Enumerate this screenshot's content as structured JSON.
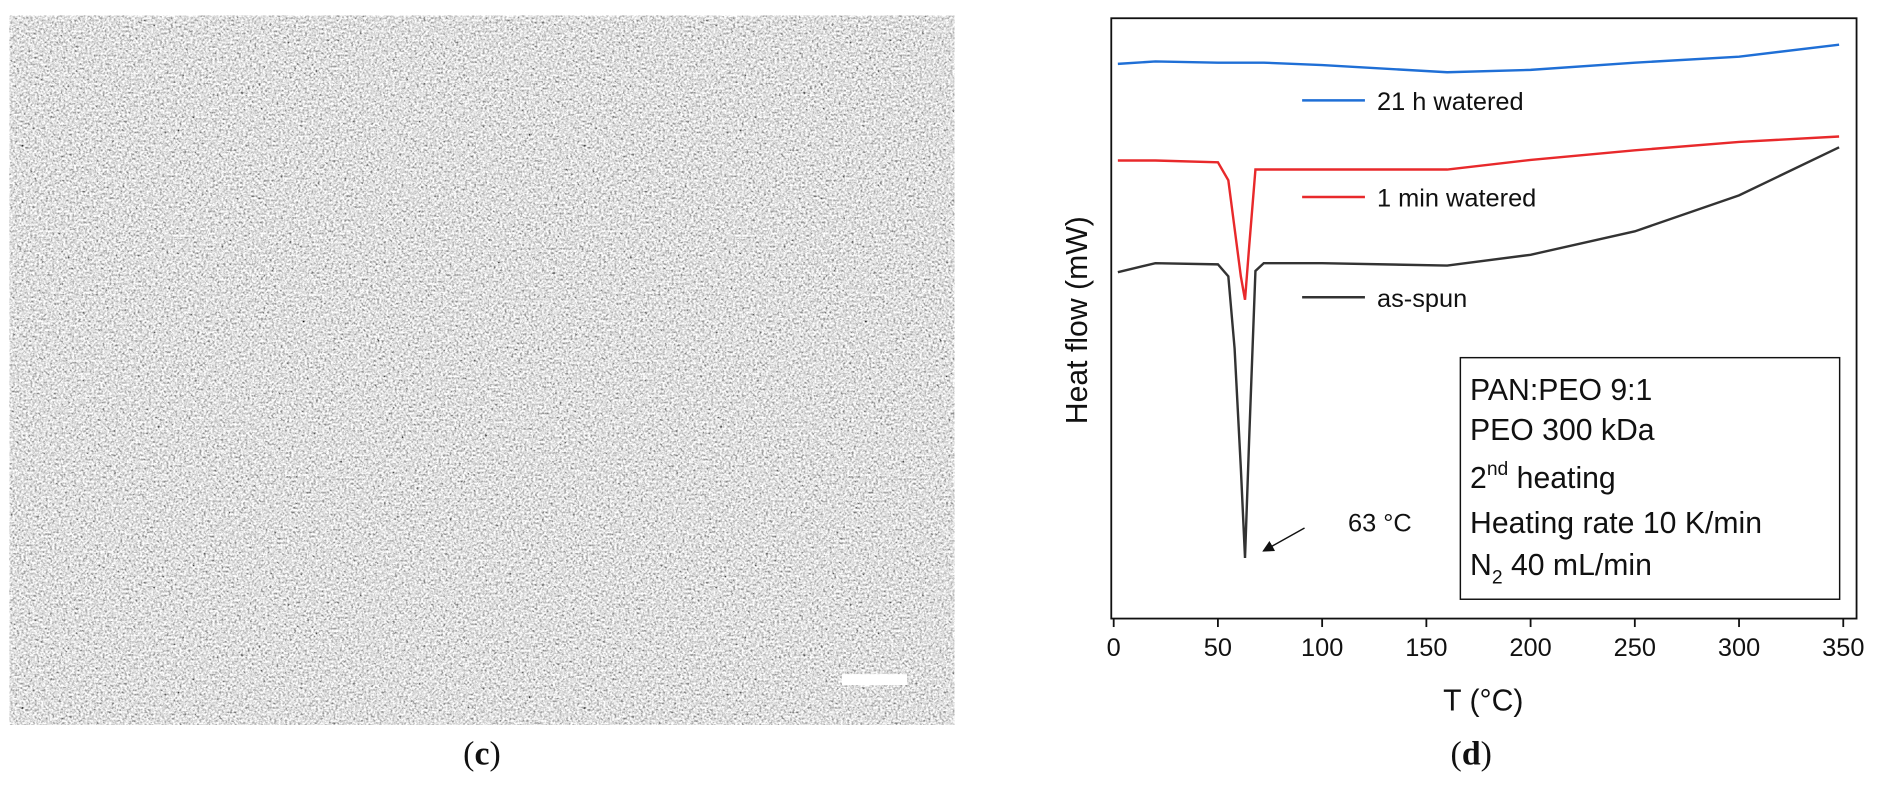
{
  "panel_labels": [
    [
      "(",
      "c",
      ")"
    ],
    [
      "(",
      "d",
      ")"
    ]
  ],
  "chart_data": {
    "type": "line",
    "x_label": "T (°C)",
    "y_label": "Heat flow (mW)",
    "x": [
      2,
      20,
      50,
      55,
      58,
      61,
      63,
      65,
      68,
      72,
      100,
      160,
      200,
      250,
      300,
      348
    ],
    "xlim": [
      0,
      350
    ],
    "xticks": [
      0,
      50,
      100,
      150,
      200,
      250,
      300,
      350
    ],
    "ylim": [
      0,
      100
    ],
    "series": [
      {
        "name": "21 h watered",
        "color": "#1f6fd6",
        "values": [
          92.4,
          92.8,
          92.6,
          92.6,
          92.6,
          92.6,
          92.6,
          92.6,
          92.6,
          92.6,
          92.2,
          91.0,
          91.4,
          92.6,
          93.6,
          95.6
        ]
      },
      {
        "name": "1 min watered",
        "color": "#e8292b",
        "values": [
          76.3,
          76.3,
          76.0,
          73,
          65,
          57,
          53.1,
          62,
          74.8,
          74.8,
          74.8,
          74.8,
          76.4,
          78,
          79.4,
          80.3
        ]
      },
      {
        "name": "as-spun",
        "color": "#333333",
        "values": [
          57.7,
          59.2,
          59.0,
          57,
          45,
          25,
          10.1,
          30,
          57.9,
          59.2,
          59.2,
          58.8,
          60.6,
          64.5,
          70.5,
          78.5
        ]
      }
    ],
    "annotation": "63 °C",
    "info_box": [
      "PAN:PEO 9:1",
      "PEO 300 kDa",
      [
        "2",
        "nd",
        " heating"
      ],
      "Heating rate 10 K/min",
      [
        "N",
        "2",
        " 40 mL/min"
      ]
    ]
  }
}
